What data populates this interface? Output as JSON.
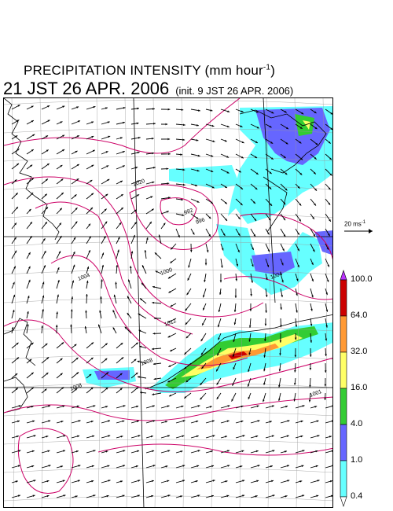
{
  "title": {
    "line1_text": "PRECIPITATION INTENSITY (mm hour",
    "line1_sup": "-1",
    "line1_close": ")",
    "main": "21 JST 26 APR. 2006",
    "init": "(init. 9 JST 26 APR. 2006)"
  },
  "reference_vector": {
    "label": "20 ms",
    "label_sup": "-1"
  },
  "colorbar": {
    "levels": [
      "100.0",
      "64.0",
      "32.0",
      "16.0",
      "4.0",
      "1.0",
      "0.4"
    ],
    "colors": [
      "#cc0000",
      "#ff9933",
      "#ffff66",
      "#33cc33",
      "#6666ff",
      "#66ffff",
      "#ffffff"
    ],
    "top_arrow_color": "#bb33ff"
  },
  "map": {
    "isobar_labels": [
      "1020",
      "992",
      "996",
      "1000",
      "1004",
      "1008",
      "1012",
      "1008",
      "1004",
      "1001"
    ],
    "colors": {
      "isobar": "#cc0066",
      "coast": "#000000",
      "grid": "#999999",
      "vector": "#000000"
    }
  }
}
